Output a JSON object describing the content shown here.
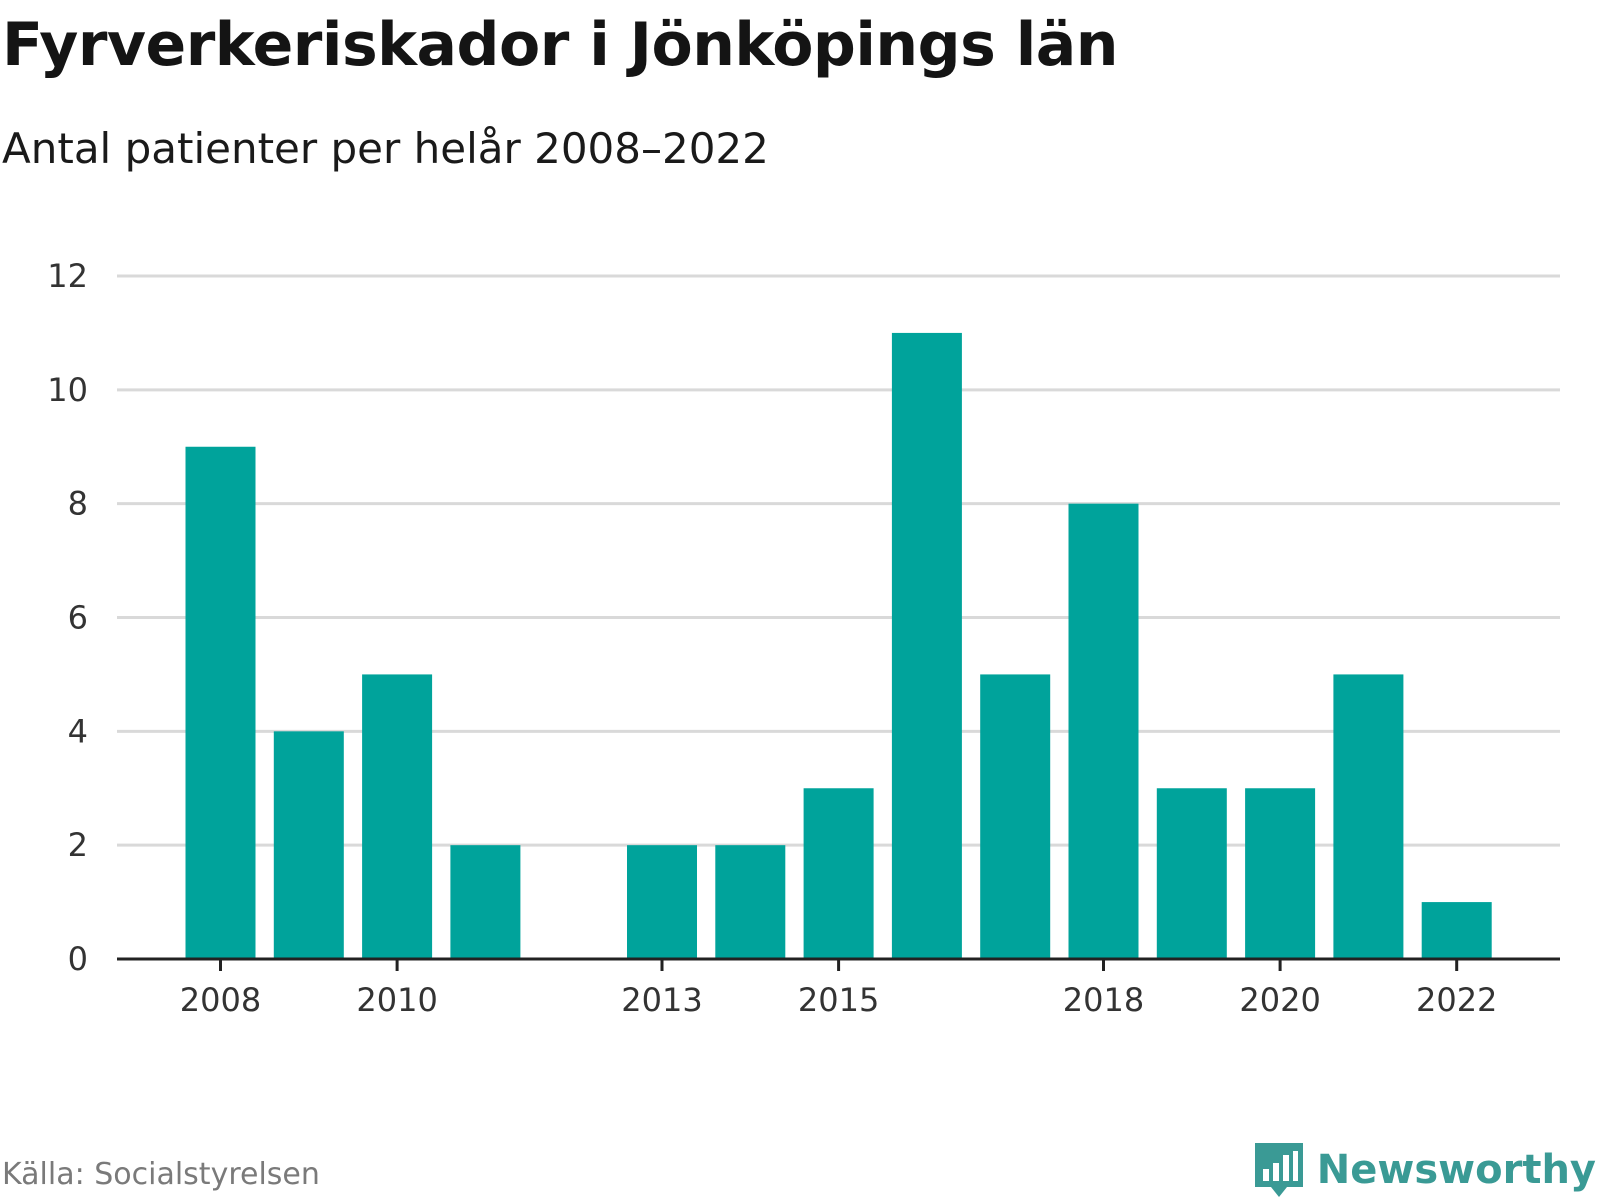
{
  "title": "Fyrverkeriskador i Jönköpings län",
  "subtitle": "Antal patienter per helår 2008–2022",
  "source": "Källa: Socialstyrelsen",
  "brand": {
    "name": "Newsworthy",
    "icon": "newsworthy-bar-chart-logo",
    "color": "#3a9a95"
  },
  "colors": {
    "bar": "#00a39b",
    "grid": "#d9d9d9",
    "axis": "#222222"
  },
  "chart_data": {
    "type": "bar",
    "categories": [
      2008,
      2009,
      2010,
      2011,
      2012,
      2013,
      2014,
      2015,
      2016,
      2017,
      2018,
      2019,
      2020,
      2021,
      2022
    ],
    "values": [
      9,
      4,
      5,
      2,
      null,
      2,
      2,
      3,
      11,
      5,
      8,
      3,
      3,
      5,
      1
    ],
    "x_tick_labels": [
      "2008",
      "2010",
      "2013",
      "2015",
      "2018",
      "2020",
      "2022"
    ],
    "y_ticks": [
      0,
      2,
      4,
      6,
      8,
      10,
      12
    ],
    "ylim": [
      0,
      12
    ],
    "grid": true,
    "xlabel": "",
    "ylabel": ""
  }
}
